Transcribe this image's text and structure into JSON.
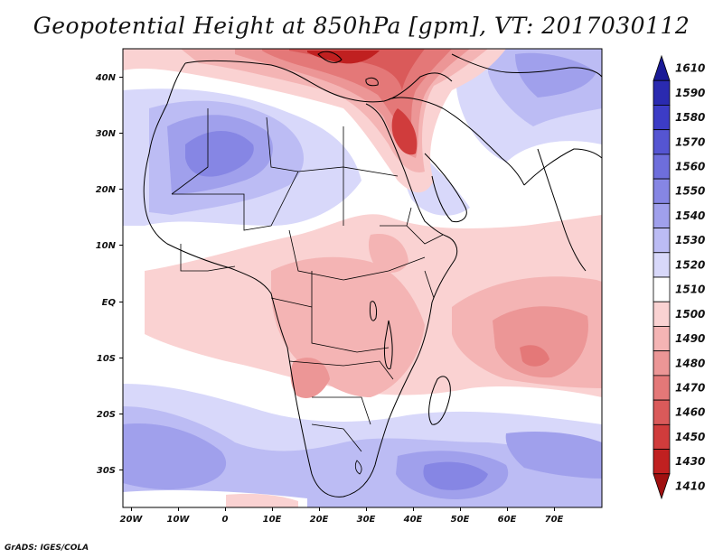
{
  "title": "Geopotential Height at 850hPa [gpm], VT: 2017030112",
  "credit": "GrADS: IGES/COLA",
  "map": {
    "lon_labels": [
      "20W",
      "10W",
      "0",
      "10E",
      "20E",
      "30E",
      "40E",
      "50E",
      "60E",
      "70E"
    ],
    "lat_labels": [
      "40N",
      "30N",
      "20N",
      "10N",
      "EQ",
      "10S",
      "20S",
      "30S"
    ]
  },
  "colorbar": {
    "labels": [
      "1610",
      "1590",
      "1580",
      "1570",
      "1560",
      "1550",
      "1540",
      "1530",
      "1520",
      "1510",
      "1500",
      "1490",
      "1480",
      "1470",
      "1460",
      "1450",
      "1430",
      "1410"
    ],
    "colors": [
      "#1a1a96",
      "#2a2ab0",
      "#3c3cc6",
      "#5555d2",
      "#6e6edc",
      "#8686e4",
      "#a0a0ec",
      "#bcbcf4",
      "#d8d8fa",
      "#ffffff",
      "#fad2d2",
      "#f4b4b4",
      "#ec9696",
      "#e47878",
      "#da5a5a",
      "#d03c3c",
      "#c02020",
      "#a01010"
    ]
  }
}
